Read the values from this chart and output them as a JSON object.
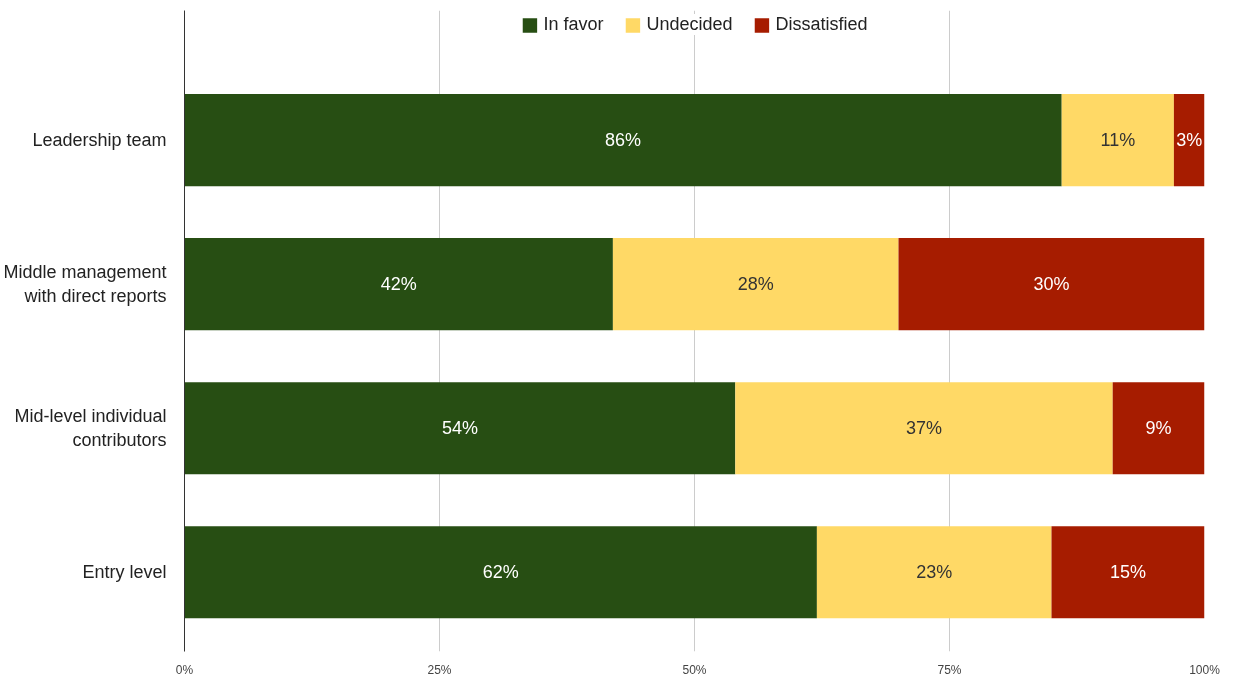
{
  "chart_data": {
    "type": "bar",
    "orientation": "horizontal",
    "stacked": true,
    "categories": [
      "Leadership team",
      "Middle management with direct reports",
      "Mid-level individual contributors",
      "Entry level"
    ],
    "series": [
      {
        "name": "In favor",
        "color": "#274e13",
        "values": [
          86,
          42,
          54,
          62
        ],
        "value_labels": [
          "86%",
          "42%",
          "54%",
          "62%"
        ]
      },
      {
        "name": "Undecided",
        "color": "#ffd966",
        "values": [
          11,
          28,
          37,
          23
        ],
        "value_labels": [
          "11%",
          "28%",
          "37%",
          "23%"
        ]
      },
      {
        "name": "Dissatisfied",
        "color": "#a61c00",
        "values": [
          3,
          30,
          9,
          15
        ],
        "value_labels": [
          "3%",
          "30%",
          "9%",
          "15%"
        ]
      }
    ],
    "xlim": [
      0,
      100
    ],
    "xticks": [
      {
        "value": 0,
        "label": "0%"
      },
      {
        "value": 25,
        "label": "25%"
      },
      {
        "value": 50,
        "label": "50%"
      },
      {
        "value": 75,
        "label": "75%"
      },
      {
        "value": 100,
        "label": "100%"
      }
    ],
    "grid": "x",
    "legend": "top"
  }
}
